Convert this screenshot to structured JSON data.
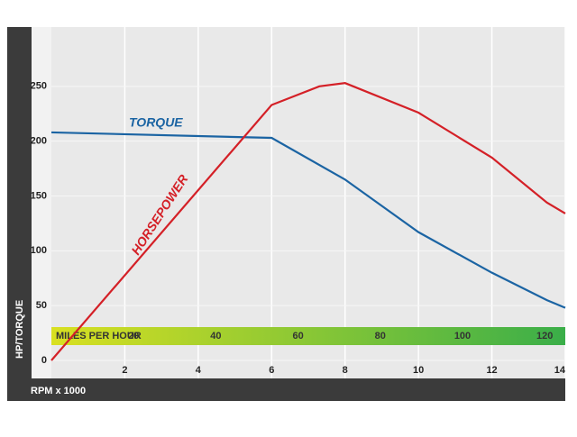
{
  "chart_data": {
    "type": "line",
    "x_label": "RPM x 1000",
    "y_label": "HP/TORQUE",
    "xlim": [
      0,
      14
    ],
    "xticks": [
      2,
      4,
      6,
      8,
      10,
      12,
      14
    ],
    "ylim": [
      0,
      300
    ],
    "yticks": [
      0,
      50,
      100,
      150,
      200,
      250
    ],
    "grid": true,
    "series": [
      {
        "name": "TORQUE",
        "color": "#1b64a3",
        "x": [
          0,
          6,
          8,
          10,
          12,
          13.5,
          14
        ],
        "values": [
          208,
          203,
          165,
          117,
          80,
          55,
          48
        ]
      },
      {
        "name": "HORSEPOWER",
        "color": "#d42027",
        "x": [
          0,
          6,
          7.3,
          8,
          10,
          12,
          13.5,
          14
        ],
        "values": [
          0,
          233,
          250,
          253,
          226,
          185,
          144,
          134
        ]
      }
    ],
    "speed_scale": {
      "label": "MILES PER HOUR",
      "lim": [
        0,
        125
      ],
      "ticks": [
        20,
        40,
        60,
        80,
        100,
        120
      ]
    }
  }
}
